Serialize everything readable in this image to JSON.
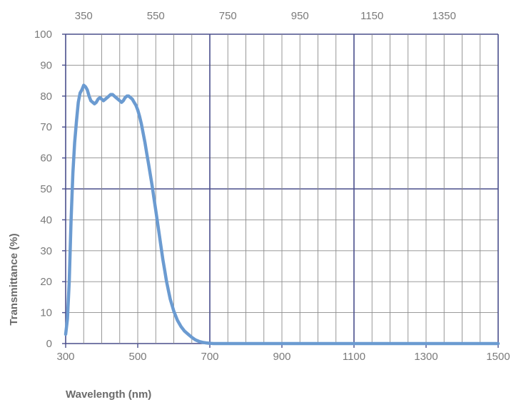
{
  "chart_data": {
    "type": "line",
    "title": "",
    "xlabel": "Wavelength (nm)",
    "ylabel": "Transmittance (%)",
    "xlim": [
      300,
      1500
    ],
    "ylim": [
      0,
      100
    ],
    "x_ticks": [
      300,
      500,
      700,
      900,
      1100,
      1300,
      1500
    ],
    "x_ticks_top": [
      350,
      550,
      750,
      950,
      1150,
      1350
    ],
    "y_ticks": [
      0,
      10,
      20,
      30,
      40,
      50,
      60,
      70,
      80,
      90,
      100
    ],
    "grid": true,
    "legend": "none",
    "series_color": "#6b9bd1",
    "major_grid_color": "#4a4e8c",
    "minor_grid_color": "#8c8c8c",
    "series": [
      {
        "x": [
          300,
          305,
          310,
          315,
          320,
          325,
          330,
          335,
          340,
          345,
          350,
          355,
          360,
          365,
          370,
          375,
          380,
          385,
          390,
          395,
          400,
          405,
          410,
          415,
          420,
          425,
          430,
          435,
          440,
          445,
          450,
          455,
          460,
          465,
          470,
          475,
          480,
          485,
          490,
          495,
          500,
          505,
          510,
          515,
          520,
          525,
          530,
          535,
          540,
          545,
          550,
          555,
          560,
          565,
          570,
          575,
          580,
          590,
          600,
          610,
          620,
          630,
          640,
          650,
          660,
          670,
          680,
          690,
          700,
          710,
          720,
          730,
          740,
          750,
          760,
          770,
          780,
          790,
          800,
          810,
          820,
          830,
          840,
          850,
          860,
          870,
          880,
          900,
          950,
          1000,
          1100,
          1200,
          1300,
          1400,
          1500
        ],
        "y": [
          3,
          8,
          20,
          40,
          55,
          65,
          72,
          78,
          81,
          82,
          83.5,
          83,
          82,
          80,
          78.5,
          78,
          77.5,
          78,
          79,
          79.5,
          79,
          78.5,
          79,
          79.5,
          80,
          80.5,
          80.5,
          80,
          79.5,
          79,
          78.5,
          78,
          78.5,
          79.5,
          80,
          80,
          79.5,
          79,
          78,
          77,
          75.5,
          73.5,
          71,
          68,
          65,
          61.5,
          58,
          54.5,
          51,
          47,
          43,
          39,
          35,
          31,
          27,
          23.5,
          20,
          14.5,
          10.5,
          7.5,
          5.5,
          4,
          3,
          2,
          1.2,
          0.7,
          0.4,
          0.2,
          0.1,
          0,
          0,
          0,
          0,
          0,
          0,
          0,
          0,
          0,
          0,
          0,
          0,
          0,
          0,
          0,
          0,
          0,
          0,
          0,
          0,
          0,
          0,
          0,
          0,
          0,
          0
        ]
      }
    ]
  }
}
